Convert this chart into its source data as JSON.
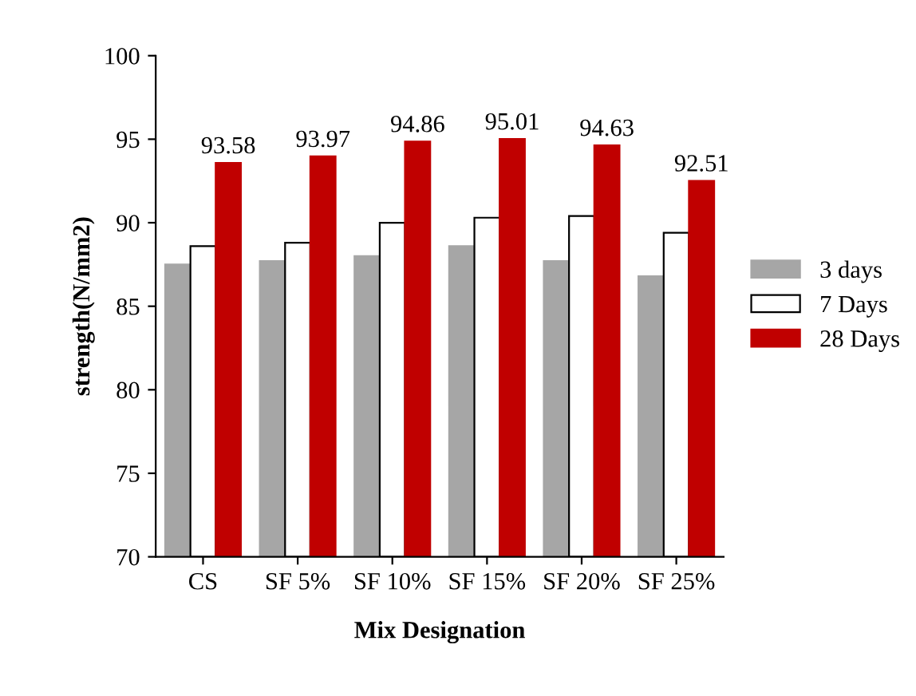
{
  "chart_data": {
    "type": "bar",
    "xlabel": "Mix Designation",
    "ylabel": "strength(N/mm2)",
    "categories": [
      "CS",
      "SF 5%",
      "SF 10%",
      "SF 15%",
      "SF 20%",
      "SF 25%"
    ],
    "series": [
      {
        "name": "3 days",
        "color": "#a6a6a6",
        "values": [
          87.5,
          87.7,
          88.0,
          88.6,
          87.7,
          86.8
        ]
      },
      {
        "name": "7 Days",
        "color": "#ffffff",
        "values": [
          88.6,
          88.8,
          90.0,
          90.3,
          90.4,
          89.4
        ]
      },
      {
        "name": "28 Days",
        "color": "#c00000",
        "values": [
          93.58,
          93.97,
          94.86,
          95.01,
          94.63,
          92.51
        ],
        "value_labels": [
          "93.58",
          "93.97",
          "94.86",
          "95.01",
          "94.63",
          "92.51"
        ]
      }
    ],
    "ylim": [
      70,
      100
    ],
    "yticks": [
      70,
      75,
      80,
      85,
      90,
      95,
      100
    ],
    "grid": false,
    "legend": "right"
  }
}
